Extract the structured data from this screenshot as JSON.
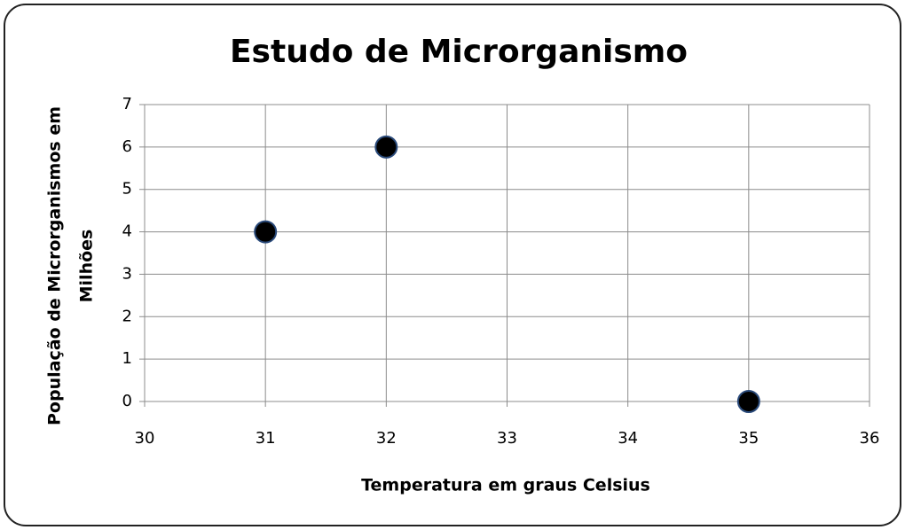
{
  "chart_data": {
    "type": "scatter",
    "title": "Estudo de Microrganismo",
    "xlabel": "Temperatura em graus Celsius",
    "ylabel": [
      "População de Microrganismos em",
      "Milhões"
    ],
    "x": [
      31,
      32,
      35
    ],
    "values": [
      4,
      6,
      0
    ],
    "color": "#000000",
    "xlim": [
      30,
      36
    ],
    "xticks": [
      30,
      31,
      32,
      33,
      34,
      35,
      36
    ],
    "ylim": [
      0,
      7
    ],
    "yticks": [
      0,
      1,
      2,
      3,
      4,
      5,
      6,
      7
    ],
    "grid": true
  }
}
